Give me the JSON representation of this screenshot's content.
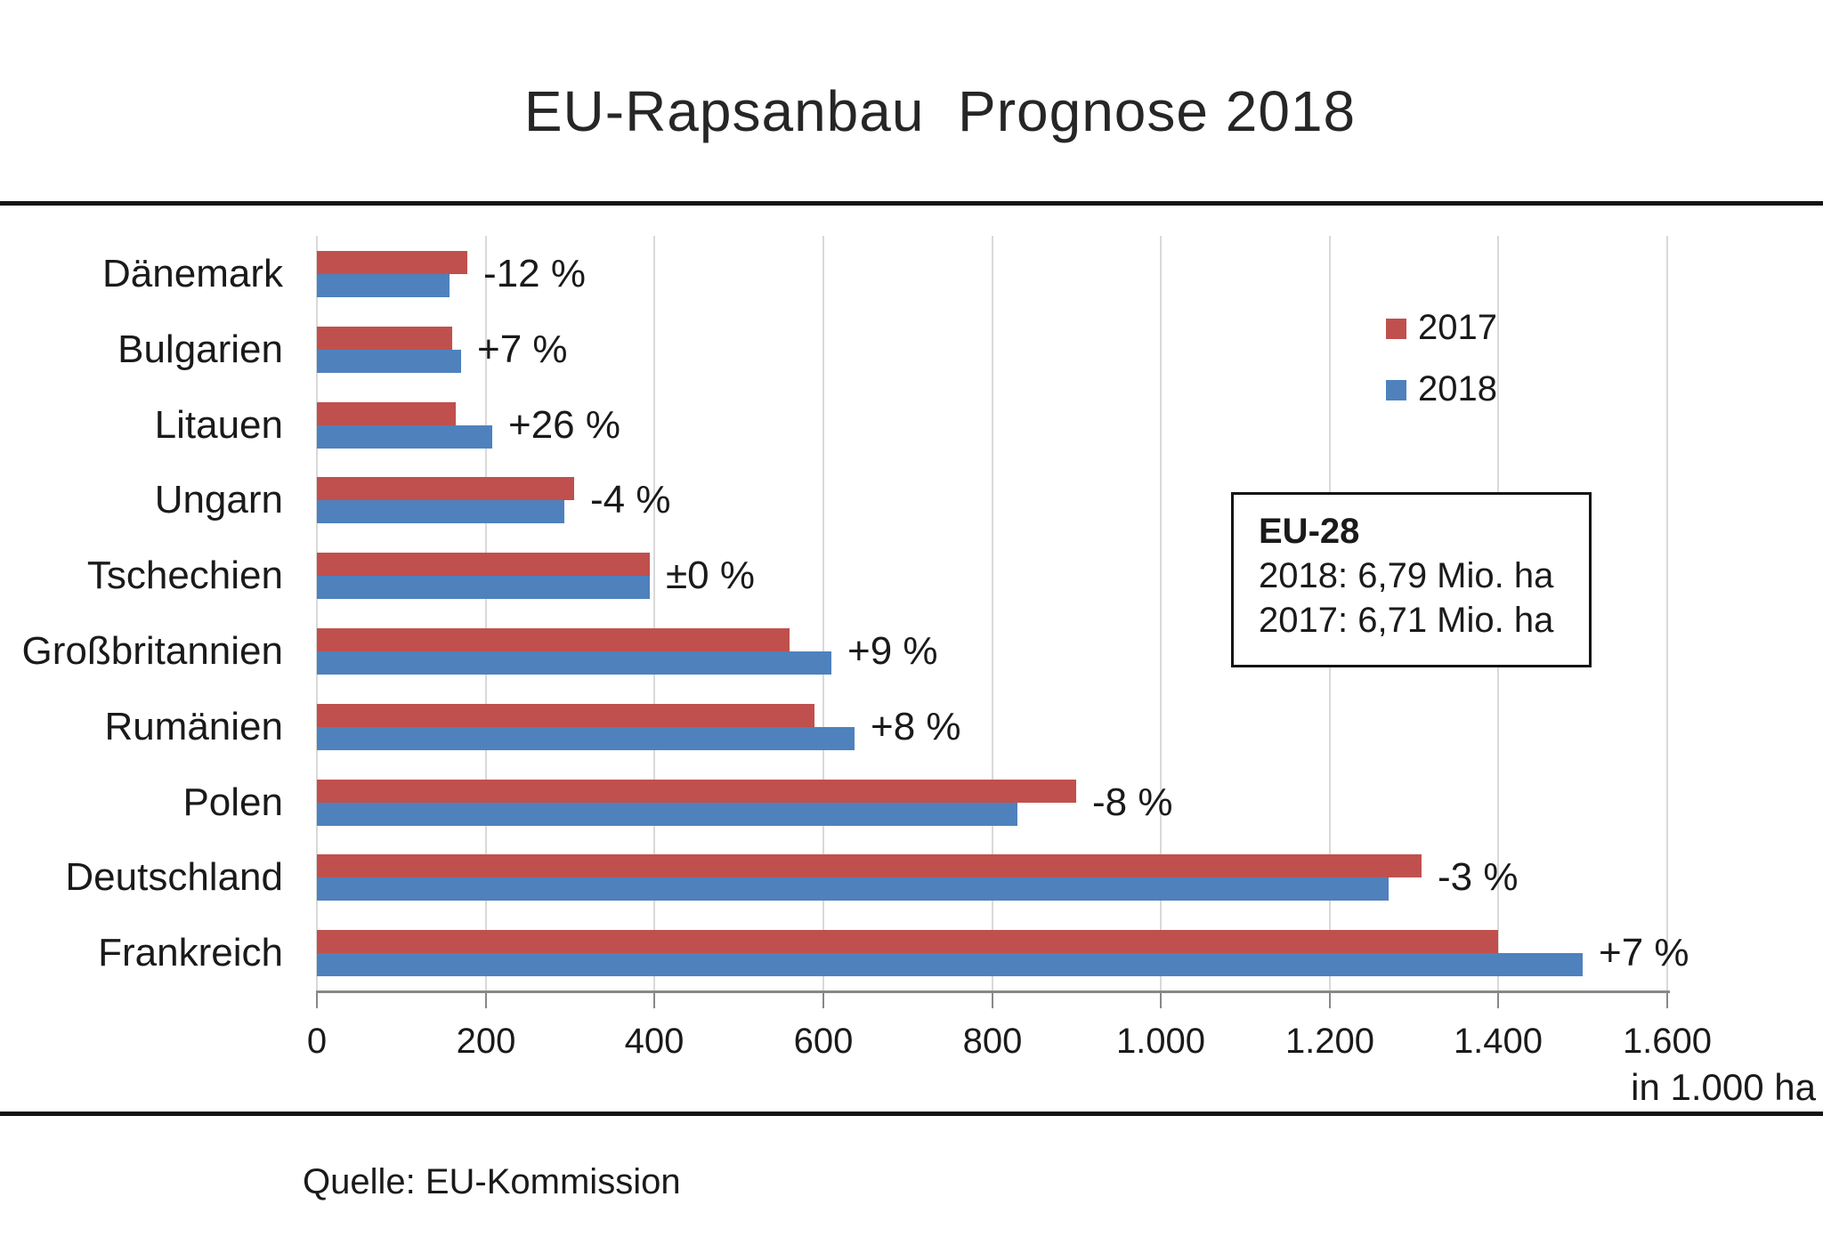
{
  "title": "EU-Rapsanbau  Prognose 2018",
  "source": "Quelle: EU-Kommission",
  "axis_unit_label": "in 1.000 ha",
  "legend": {
    "items": [
      {
        "label": "2017",
        "color": "#C0504D"
      },
      {
        "label": "2018",
        "color": "#4F81BD"
      }
    ]
  },
  "annotation_box": {
    "heading": "EU-28",
    "line_2018": "2018: 6,79 Mio. ha",
    "line_2017": "2017: 6,71 Mio. ha"
  },
  "colors": {
    "bar_2017": "#C0504D",
    "bar_2018": "#4F81BD",
    "gridline": "#d9d9d9",
    "axis": "#888888",
    "text": "#1a1a1a",
    "rule": "#141414"
  },
  "chart_data": {
    "type": "bar",
    "orientation": "horizontal",
    "title": "EU-Rapsanbau Prognose 2018",
    "unit": "in 1.000 ha",
    "categories": [
      "Dänemark",
      "Bulgarien",
      "Litauen",
      "Ungarn",
      "Tschechien",
      "Großbritannien",
      "Rumänien",
      "Polen",
      "Deutschland",
      "Frankreich"
    ],
    "series": [
      {
        "name": "2017",
        "color": "#C0504D",
        "values": [
          178,
          160,
          165,
          305,
          394,
          560,
          590,
          900,
          1309,
          1400
        ]
      },
      {
        "name": "2018",
        "color": "#4F81BD",
        "values": [
          157,
          171,
          208,
          293,
          394,
          610,
          637,
          830,
          1270,
          1500
        ]
      }
    ],
    "change_labels": [
      "-12 %",
      "+7 %",
      "+26 %",
      "-4 %",
      "±0 %",
      "+9 %",
      "+8 %",
      "-8 %",
      "-3 %",
      "+7 %"
    ],
    "xlim": [
      0,
      1600
    ],
    "x_tick_step": 200,
    "x_tick_labels": [
      "0",
      "200",
      "400",
      "600",
      "800",
      "1.000",
      "1.200",
      "1.400",
      "1.600"
    ],
    "grid": "vertical",
    "legend_position": "top-right",
    "annotation": "EU-28 | 2018: 6,79 Mio. ha | 2017: 6,71 Mio. ha"
  }
}
